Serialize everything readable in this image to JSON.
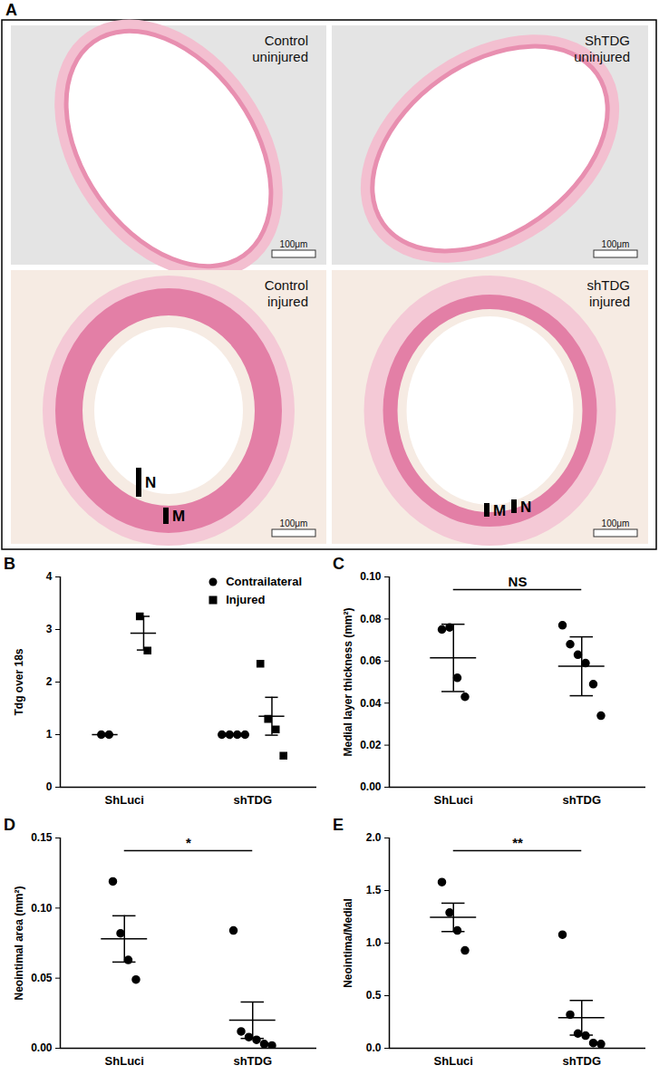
{
  "panel_a": {
    "label": "A",
    "images": [
      {
        "caption": [
          "Control",
          "uninjured"
        ],
        "scale_bar": "100μm"
      },
      {
        "caption": [
          "ShTDG",
          "uninjured"
        ],
        "scale_bar": "100μm"
      },
      {
        "caption": [
          "Control",
          "injured"
        ],
        "scale_bar": "100μm",
        "layers": [
          "N",
          "M"
        ]
      },
      {
        "caption": [
          "shTDG",
          "injured"
        ],
        "scale_bar": "100μm",
        "layers": [
          "M",
          "N"
        ]
      }
    ]
  },
  "chart_data": [
    {
      "type": "scatter",
      "title": "B",
      "y_label": "Tdg over 18s",
      "categories": [
        "ShLuci",
        "shTDG"
      ],
      "series": [
        {
          "name": "Contrailateral",
          "marker": "circle",
          "color": "#000000",
          "values": [
            [
              1,
              1
            ],
            [
              1,
              1,
              1,
              1
            ]
          ],
          "mean": [
            1,
            1
          ],
          "sem": [
            0,
            0
          ]
        },
        {
          "name": "Injured",
          "marker": "square",
          "color": "#000000",
          "values": [
            [
              3.25,
              2.6
            ],
            [
              2.35,
              1.3,
              1.1,
              0.6
            ]
          ],
          "mean": [
            2.93,
            1.35
          ],
          "sem": [
            0.32,
            0.36
          ]
        }
      ],
      "ylim": [
        0,
        4
      ],
      "yticks": [
        0,
        1,
        2,
        3,
        4
      ],
      "legend": "top-right"
    },
    {
      "type": "scatter",
      "title": "C",
      "y_label": "Medial layer thickness (mm²)",
      "categories": [
        "ShLuci",
        "shTDG"
      ],
      "series": [
        {
          "name": "Medial layer thickness",
          "marker": "circle",
          "color": "#000000",
          "values": [
            [
              0.075,
              0.076,
              0.052,
              0.043
            ],
            [
              0.077,
              0.068,
              0.063,
              0.059,
              0.049,
              0.034
            ]
          ],
          "mean": [
            0.0615,
            0.0575
          ],
          "sem": [
            0.016,
            0.014
          ]
        }
      ],
      "ylim": [
        0,
        0.1
      ],
      "yticks": [
        {
          "value": 0,
          "label": "0.00"
        },
        {
          "value": 0.02,
          "label": "0.02"
        },
        {
          "value": 0.04,
          "label": "0.04"
        },
        {
          "value": 0.06,
          "label": "0.06"
        },
        {
          "value": 0.08,
          "label": "0.08"
        },
        {
          "value": 0.1,
          "label": "0.10"
        }
      ],
      "annotations": [
        {
          "text": "NS",
          "between": [
            "ShLuci",
            "shTDG"
          ]
        }
      ]
    },
    {
      "type": "scatter",
      "title": "D",
      "y_label": "Neointimal area (mm²)",
      "categories": [
        "ShLuci",
        "shTDG"
      ],
      "series": [
        {
          "name": "Neointimal area",
          "marker": "circle",
          "color": "#000000",
          "values": [
            [
              0.119,
              0.082,
              0.063,
              0.049
            ],
            [
              0.084,
              0.012,
              0.008,
              0.006,
              0.003,
              0.002
            ]
          ],
          "mean": [
            0.078,
            0.02
          ],
          "sem": [
            0.0165,
            0.013
          ]
        }
      ],
      "ylim": [
        0,
        0.15
      ],
      "yticks": [
        {
          "value": 0,
          "label": "0.00"
        },
        {
          "value": 0.05,
          "label": "0.05"
        },
        {
          "value": 0.1,
          "label": "0.10"
        },
        {
          "value": 0.15,
          "label": "0.15"
        }
      ],
      "annotations": [
        {
          "text": "*",
          "between": [
            "ShLuci",
            "shTDG"
          ]
        }
      ]
    },
    {
      "type": "scatter",
      "title": "E",
      "y_label": "Neointima/Medial",
      "categories": [
        "ShLuci",
        "shTDG"
      ],
      "series": [
        {
          "name": "Neointima/Medial",
          "marker": "circle",
          "color": "#000000",
          "values": [
            [
              1.58,
              1.29,
              1.12,
              0.93
            ],
            [
              1.08,
              0.32,
              0.14,
              0.12,
              0.05,
              0.04
            ]
          ],
          "mean": [
            1.245,
            0.29
          ],
          "sem": [
            0.135,
            0.165
          ]
        }
      ],
      "ylim": [
        0,
        2
      ],
      "yticks": [
        {
          "value": 0,
          "label": "0.0"
        },
        {
          "value": 0.5,
          "label": "0.5"
        },
        {
          "value": 1,
          "label": "1.0"
        },
        {
          "value": 1.5,
          "label": "1.5"
        },
        {
          "value": 2,
          "label": "2.0"
        }
      ],
      "annotations": [
        {
          "text": "**",
          "between": [
            "ShLuci",
            "shTDG"
          ]
        }
      ]
    }
  ]
}
